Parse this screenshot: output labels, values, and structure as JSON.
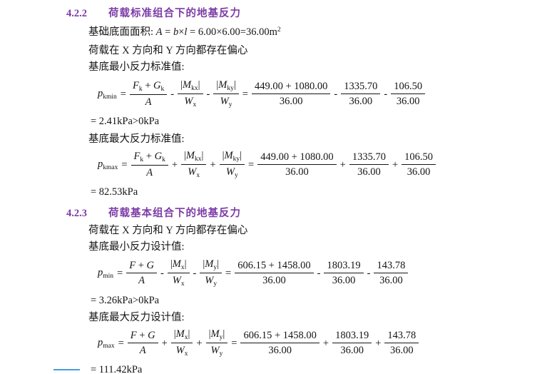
{
  "page": {
    "heading_color": "#7d3ba6",
    "text_color": "#141414",
    "accent_line_color": "#4a9ddc"
  },
  "sections": [
    {
      "number": "4.2.2",
      "title": "荷载标准组合下的地基反力"
    },
    {
      "number": "4.2.3",
      "title": "荷载基本组合下的地基反力"
    }
  ],
  "lines": {
    "area": [
      {
        "x": "基础底面面积: "
      },
      {
        "x": "A",
        "s": "i"
      },
      {
        "x": " = "
      },
      {
        "x": "b",
        "s": "i"
      },
      {
        "x": "×"
      },
      {
        "x": "l",
        "s": "i"
      },
      {
        "x": " = 6.00×6.00=36.00m"
      },
      {
        "x": "2",
        "s": "sup"
      }
    ],
    "eccentric1": "荷载在 X 方向和 Y 方向都存在偏心",
    "eccentric2": "荷载在 X 方向和 Y 方向都存在偏心",
    "min_std": "基底最小反力标准值:",
    "max_std": "基底最大反力标准值:",
    "min_design": "基底最小反力设计值:",
    "max_design": "基底最大反力设计值:"
  },
  "formulas": [
    {
      "name": "p_kmin",
      "result": "= 2.41kPa>0kPa",
      "items": [
        {
          "t": "grp",
          "parts": [
            {
              "x": "p",
              "s": "i"
            },
            {
              "x": "kmin",
              "s": "sub"
            }
          ]
        },
        {
          "t": "op",
          "x": "="
        },
        {
          "t": "frac",
          "num": [
            {
              "x": "F",
              "s": "i"
            },
            {
              "x": "k",
              "s": "sub"
            },
            {
              "x": " + "
            },
            {
              "x": "G",
              "s": "i"
            },
            {
              "x": "k",
              "s": "sub"
            }
          ],
          "den": [
            {
              "x": "A",
              "s": "i"
            }
          ]
        },
        {
          "t": "op",
          "x": "-"
        },
        {
          "t": "frac",
          "num": [
            {
              "x": "|"
            },
            {
              "x": "M",
              "s": "i"
            },
            {
              "x": "kx",
              "s": "sub"
            },
            {
              "x": "|"
            }
          ],
          "den": [
            {
              "x": "W",
              "s": "i"
            },
            {
              "x": "x",
              "s": "sub"
            }
          ]
        },
        {
          "t": "op",
          "x": "-"
        },
        {
          "t": "frac",
          "num": [
            {
              "x": "|"
            },
            {
              "x": "M",
              "s": "i"
            },
            {
              "x": "ky",
              "s": "sub"
            },
            {
              "x": "|"
            }
          ],
          "den": [
            {
              "x": "W",
              "s": "i"
            },
            {
              "x": "y",
              "s": "sub"
            }
          ]
        },
        {
          "t": "op",
          "x": "="
        },
        {
          "t": "frac",
          "num": [
            {
              "x": "449.00 + 1080.00"
            }
          ],
          "den": [
            {
              "x": "36.00"
            }
          ]
        },
        {
          "t": "op",
          "x": "-"
        },
        {
          "t": "frac",
          "num": [
            {
              "x": "1335.70"
            }
          ],
          "den": [
            {
              "x": "36.00"
            }
          ]
        },
        {
          "t": "op",
          "x": "-"
        },
        {
          "t": "frac",
          "num": [
            {
              "x": "106.50"
            }
          ],
          "den": [
            {
              "x": "36.00"
            }
          ]
        }
      ]
    },
    {
      "name": "p_kmax",
      "result": "= 82.53kPa",
      "items": [
        {
          "t": "grp",
          "parts": [
            {
              "x": "p",
              "s": "i"
            },
            {
              "x": "kmax",
              "s": "sub"
            }
          ]
        },
        {
          "t": "op",
          "x": "="
        },
        {
          "t": "frac",
          "num": [
            {
              "x": "F",
              "s": "i"
            },
            {
              "x": "k",
              "s": "sub"
            },
            {
              "x": " + "
            },
            {
              "x": "G",
              "s": "i"
            },
            {
              "x": "k",
              "s": "sub"
            }
          ],
          "den": [
            {
              "x": "A",
              "s": "i"
            }
          ]
        },
        {
          "t": "op",
          "x": "+"
        },
        {
          "t": "frac",
          "num": [
            {
              "x": "|"
            },
            {
              "x": "M",
              "s": "i"
            },
            {
              "x": "kx",
              "s": "sub"
            },
            {
              "x": "|"
            }
          ],
          "den": [
            {
              "x": "W",
              "s": "i"
            },
            {
              "x": "x",
              "s": "sub"
            }
          ]
        },
        {
          "t": "op",
          "x": "+"
        },
        {
          "t": "frac",
          "num": [
            {
              "x": "|"
            },
            {
              "x": "M",
              "s": "i"
            },
            {
              "x": "ky",
              "s": "sub"
            },
            {
              "x": "|"
            }
          ],
          "den": [
            {
              "x": "W",
              "s": "i"
            },
            {
              "x": "y",
              "s": "sub"
            }
          ]
        },
        {
          "t": "op",
          "x": "="
        },
        {
          "t": "frac",
          "num": [
            {
              "x": "449.00 + 1080.00"
            }
          ],
          "den": [
            {
              "x": "36.00"
            }
          ]
        },
        {
          "t": "op",
          "x": "+"
        },
        {
          "t": "frac",
          "num": [
            {
              "x": "1335.70"
            }
          ],
          "den": [
            {
              "x": "36.00"
            }
          ]
        },
        {
          "t": "op",
          "x": "+"
        },
        {
          "t": "frac",
          "num": [
            {
              "x": "106.50"
            }
          ],
          "den": [
            {
              "x": "36.00"
            }
          ]
        }
      ]
    },
    {
      "name": "p_min",
      "result": "= 3.26kPa>0kPa",
      "items": [
        {
          "t": "grp",
          "parts": [
            {
              "x": "p",
              "s": "i"
            },
            {
              "x": "min",
              "s": "sub"
            }
          ]
        },
        {
          "t": "op",
          "x": "="
        },
        {
          "t": "frac",
          "num": [
            {
              "x": "F",
              "s": "i"
            },
            {
              "x": " + "
            },
            {
              "x": "G",
              "s": "i"
            }
          ],
          "den": [
            {
              "x": "A",
              "s": "i"
            }
          ]
        },
        {
          "t": "op",
          "x": "-"
        },
        {
          "t": "frac",
          "num": [
            {
              "x": "|"
            },
            {
              "x": "M",
              "s": "i"
            },
            {
              "x": "x",
              "s": "sub"
            },
            {
              "x": "|"
            }
          ],
          "den": [
            {
              "x": "W",
              "s": "i"
            },
            {
              "x": "x",
              "s": "sub"
            }
          ]
        },
        {
          "t": "op",
          "x": "-"
        },
        {
          "t": "frac",
          "num": [
            {
              "x": "|"
            },
            {
              "x": "M",
              "s": "i"
            },
            {
              "x": "y",
              "s": "sub"
            },
            {
              "x": "|"
            }
          ],
          "den": [
            {
              "x": "W",
              "s": "i"
            },
            {
              "x": "y",
              "s": "sub"
            }
          ]
        },
        {
          "t": "op",
          "x": "="
        },
        {
          "t": "frac",
          "num": [
            {
              "x": "606.15 + 1458.00"
            }
          ],
          "den": [
            {
              "x": "36.00"
            }
          ]
        },
        {
          "t": "op",
          "x": "-"
        },
        {
          "t": "frac",
          "num": [
            {
              "x": "1803.19"
            }
          ],
          "den": [
            {
              "x": "36.00"
            }
          ]
        },
        {
          "t": "op",
          "x": "-"
        },
        {
          "t": "frac",
          "num": [
            {
              "x": "143.78"
            }
          ],
          "den": [
            {
              "x": "36.00"
            }
          ]
        }
      ]
    },
    {
      "name": "p_max",
      "result": "= 111.42kPa",
      "items": [
        {
          "t": "grp",
          "parts": [
            {
              "x": "p",
              "s": "i"
            },
            {
              "x": "max",
              "s": "sub"
            }
          ]
        },
        {
          "t": "op",
          "x": "="
        },
        {
          "t": "frac",
          "num": [
            {
              "x": "F",
              "s": "i"
            },
            {
              "x": " + "
            },
            {
              "x": "G",
              "s": "i"
            }
          ],
          "den": [
            {
              "x": "A",
              "s": "i"
            }
          ]
        },
        {
          "t": "op",
          "x": "+"
        },
        {
          "t": "frac",
          "num": [
            {
              "x": "|"
            },
            {
              "x": "M",
              "s": "i"
            },
            {
              "x": "x",
              "s": "sub"
            },
            {
              "x": "|"
            }
          ],
          "den": [
            {
              "x": "W",
              "s": "i"
            },
            {
              "x": "x",
              "s": "sub"
            }
          ]
        },
        {
          "t": "op",
          "x": "+"
        },
        {
          "t": "frac",
          "num": [
            {
              "x": "|"
            },
            {
              "x": "M",
              "s": "i"
            },
            {
              "x": "y",
              "s": "sub"
            },
            {
              "x": "|"
            }
          ],
          "den": [
            {
              "x": "W",
              "s": "i"
            },
            {
              "x": "y",
              "s": "sub"
            }
          ]
        },
        {
          "t": "op",
          "x": "="
        },
        {
          "t": "frac",
          "num": [
            {
              "x": "606.15 + 1458.00"
            }
          ],
          "den": [
            {
              "x": "36.00"
            }
          ]
        },
        {
          "t": "op",
          "x": "+"
        },
        {
          "t": "frac",
          "num": [
            {
              "x": "1803.19"
            }
          ],
          "den": [
            {
              "x": "36.00"
            }
          ]
        },
        {
          "t": "op",
          "x": "+"
        },
        {
          "t": "frac",
          "num": [
            {
              "x": "143.78"
            }
          ],
          "den": [
            {
              "x": "36.00"
            }
          ]
        }
      ]
    }
  ]
}
